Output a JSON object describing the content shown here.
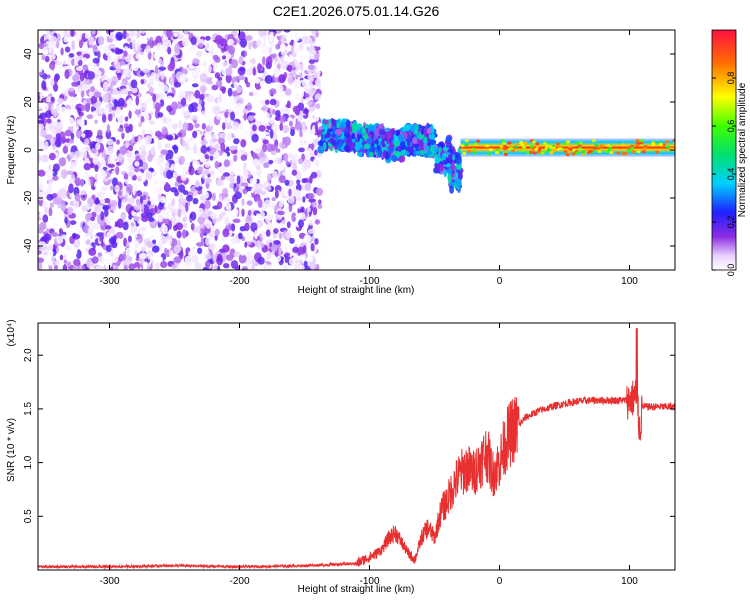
{
  "title": "C2E1.2026.075.01.14.G26",
  "chart_data": [
    {
      "type": "heatmap",
      "xlabel": "Height of straight line (km)",
      "ylabel": "Frequency (Hz)",
      "xlim": [
        -355,
        135
      ],
      "ylim": [
        -50,
        50
      ],
      "xticks": [
        -300,
        -200,
        -100,
        0,
        100
      ],
      "xtick_labels": [
        "-300",
        "-200",
        "-100",
        "0",
        "100"
      ],
      "yticks": [
        -40,
        -20,
        0,
        20,
        40
      ],
      "ytick_labels": [
        "-40",
        "-20",
        "0",
        "20",
        "40"
      ],
      "colorbar": {
        "label": "Normalized spectral amplitude",
        "range": [
          0,
          1
        ],
        "ticks": [
          0.0,
          0.2,
          0.4,
          0.6,
          0.8
        ],
        "tick_labels": [
          "0.0",
          "0.2",
          "0.4",
          "0.6",
          "0.8"
        ],
        "colormap": "rainbow"
      },
      "regions": [
        {
          "x_range": [
            -355,
            -138
          ],
          "freq_range": [
            -50,
            50
          ],
          "amplitude_range": [
            0.0,
            0.2
          ]
        },
        {
          "x_range": [
            -138,
            -30
          ],
          "freq_range": [
            -18,
            12
          ],
          "amplitude_range": [
            0.1,
            0.45
          ]
        },
        {
          "x_range": [
            -30,
            135
          ],
          "freq_range": [
            -2,
            4
          ],
          "amplitude_range": [
            0.5,
            0.95
          ]
        }
      ]
    },
    {
      "type": "line",
      "xlabel": "Height of straight line (km)",
      "ylabel": "SNR (10 * v/v)",
      "y_scale_label": "(x10⁴)",
      "xlim": [
        -355,
        135
      ],
      "ylim": [
        0,
        2.3
      ],
      "xticks": [
        -300,
        -200,
        -100,
        0,
        100
      ],
      "xtick_labels": [
        "-300",
        "-200",
        "-100",
        "0",
        "100"
      ],
      "yticks": [
        0.5,
        1.0,
        1.5,
        2.0
      ],
      "ytick_labels": [
        "0.5",
        "1.0",
        "1.5",
        "2.0"
      ],
      "color": "#e83030",
      "x": [
        -355,
        -300,
        -250,
        -200,
        -150,
        -110,
        -100,
        -95,
        -90,
        -85,
        -80,
        -75,
        -70,
        -65,
        -60,
        -55,
        -50,
        -45,
        -40,
        -35,
        -30,
        -25,
        -20,
        -15,
        -10,
        -5,
        0,
        5,
        10,
        15,
        20,
        30,
        40,
        50,
        60,
        70,
        80,
        90,
        100,
        105,
        108,
        110,
        120,
        135
      ],
      "values": [
        0.03,
        0.03,
        0.04,
        0.03,
        0.04,
        0.06,
        0.12,
        0.15,
        0.2,
        0.3,
        0.35,
        0.25,
        0.15,
        0.1,
        0.3,
        0.4,
        0.3,
        0.55,
        0.65,
        0.8,
        0.9,
        0.95,
        0.9,
        1.0,
        1.1,
        0.9,
        1.0,
        1.2,
        1.3,
        1.35,
        1.42,
        1.48,
        1.52,
        1.55,
        1.57,
        1.58,
        1.58,
        1.58,
        1.58,
        1.62,
        1.3,
        1.52,
        1.52,
        1.52
      ]
    }
  ]
}
